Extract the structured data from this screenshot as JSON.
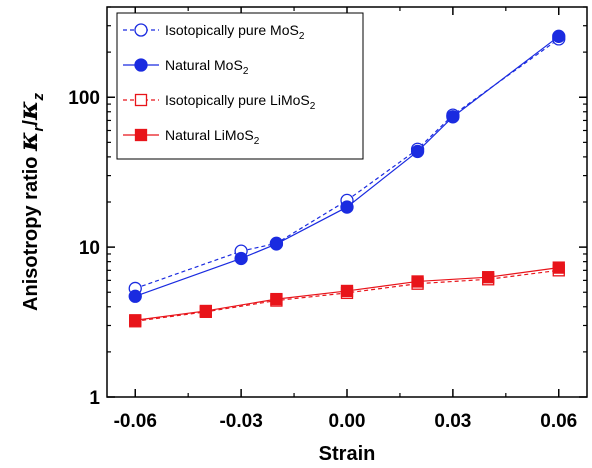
{
  "chart_data": {
    "type": "line",
    "x_scale": "linear",
    "y_scale": "log",
    "xlim": [
      -0.068,
      0.068
    ],
    "ylim": [
      1,
      400
    ],
    "xticks": [
      -0.06,
      -0.03,
      0.0,
      0.03,
      0.06
    ],
    "xtick_labels": [
      "-0.06",
      "-0.03",
      "0.00",
      "0.03",
      "0.06"
    ],
    "yticks": [
      1,
      10,
      100
    ],
    "ytick_labels": [
      "1",
      "10",
      "100"
    ],
    "xlabel": "Strain",
    "ylabel": {
      "prefix": "Anisotropy ratio ",
      "kr": "κ",
      "kr_sub": "r",
      "slash": "/",
      "kz": "κ",
      "kz_sub": "z"
    },
    "grid": false,
    "legend": "top-left",
    "series": [
      {
        "name": "Isotopically pure MoS2",
        "legend": {
          "main": "Isotopically pure MoS",
          "sub": "2"
        },
        "color": "#1a2be0",
        "marker": "circle",
        "filled": false,
        "dashed": true,
        "x": [
          -0.06,
          -0.03,
          -0.02,
          0.0,
          0.02,
          0.03,
          0.06
        ],
        "y": [
          5.3,
          9.4,
          10.6,
          20.5,
          45.0,
          76.0,
          245.0
        ]
      },
      {
        "name": "Natural MoS2",
        "legend": {
          "main": "Natural MoS",
          "sub": "2"
        },
        "color": "#1a2be0",
        "marker": "circle",
        "filled": true,
        "dashed": false,
        "x": [
          -0.06,
          -0.03,
          -0.02,
          0.0,
          0.02,
          0.03,
          0.06
        ],
        "y": [
          4.7,
          8.4,
          10.5,
          18.5,
          43.5,
          74.0,
          255.0
        ]
      },
      {
        "name": "Isotopically pure LiMoS2",
        "legend": {
          "main": "Isotopically pure LiMoS",
          "sub": "2"
        },
        "color": "#e8141a",
        "marker": "square",
        "filled": false,
        "dashed": true,
        "x": [
          -0.06,
          -0.04,
          -0.02,
          0.0,
          0.02,
          0.04,
          0.06
        ],
        "y": [
          3.2,
          3.7,
          4.4,
          4.95,
          5.7,
          6.1,
          7.0
        ]
      },
      {
        "name": "Natural LiMoS2",
        "legend": {
          "main": "Natural LiMoS",
          "sub": "2"
        },
        "color": "#e8141a",
        "marker": "square",
        "filled": true,
        "dashed": false,
        "x": [
          -0.06,
          -0.04,
          -0.02,
          0.0,
          0.02,
          0.04,
          0.06
        ],
        "y": [
          3.25,
          3.75,
          4.5,
          5.1,
          5.9,
          6.3,
          7.3
        ]
      }
    ]
  }
}
